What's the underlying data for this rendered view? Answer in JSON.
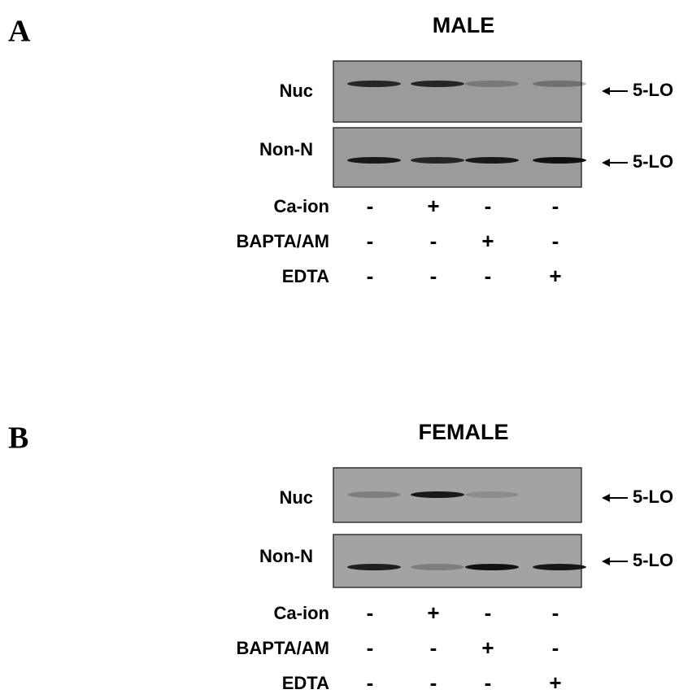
{
  "panels": [
    {
      "label": "A",
      "title": "MALE",
      "blots": [
        {
          "label": "Nuc",
          "marker": "5-LO"
        },
        {
          "label": "Non-N",
          "marker": "5-LO"
        }
      ],
      "treatments": [
        {
          "name": "Ca-ion",
          "lanes": [
            "-",
            "+",
            "-",
            "-"
          ]
        },
        {
          "name": "BAPTA/AM",
          "lanes": [
            "-",
            "-",
            "+",
            "-"
          ]
        },
        {
          "name": "EDTA",
          "lanes": [
            "-",
            "-",
            "-",
            "+"
          ]
        }
      ]
    },
    {
      "label": "B",
      "title": "FEMALE",
      "blots": [
        {
          "label": "Nuc",
          "marker": "5-LO"
        },
        {
          "label": "Non-N",
          "marker": "5-LO"
        }
      ],
      "treatments": [
        {
          "name": "Ca-ion",
          "lanes": [
            "-",
            "+",
            "-",
            "-"
          ]
        },
        {
          "name": "BAPTA/AM",
          "lanes": [
            "-",
            "-",
            "+",
            "-"
          ]
        },
        {
          "name": "EDTA",
          "lanes": [
            "-",
            "-",
            "-",
            "+"
          ]
        }
      ]
    }
  ]
}
